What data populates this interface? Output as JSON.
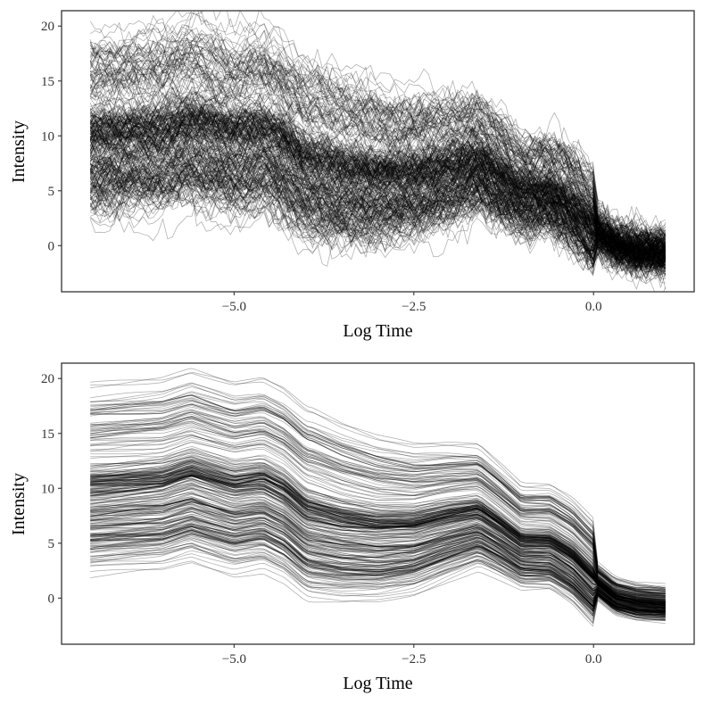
{
  "colors": {
    "line": "#000000",
    "frame": "#333333",
    "background": "#ffffff"
  },
  "chart_data": [
    {
      "type": "line",
      "title": "",
      "xlabel": "Log Time",
      "ylabel": "Intensity",
      "xlim": [
        -7.4,
        1.4
      ],
      "ylim": [
        -4.2,
        21.4
      ],
      "xticks": [
        -5.0,
        -2.5,
        0.0
      ],
      "xtick_labels": [
        "−5.0",
        "−2.5",
        "0.0"
      ],
      "yticks": [
        0,
        5,
        10,
        15,
        20
      ],
      "ytick_labels": [
        "0",
        "5",
        "10",
        "15",
        "20"
      ],
      "grid": false,
      "n_curves": 300,
      "x_range": [
        -7.0,
        1.0
      ],
      "smoothed": false,
      "mean_profile": {
        "x": [
          -7.0,
          -6.0,
          -5.6,
          -5.0,
          -4.6,
          -4.3,
          -4.0,
          -3.5,
          -3.0,
          -2.5,
          -2.0,
          -1.6,
          -1.3,
          -1.0,
          -0.6,
          -0.3,
          0.0,
          0.3,
          0.6,
          1.0
        ],
        "y": [
          9.5,
          10.0,
          10.8,
          9.6,
          10.0,
          9.0,
          7.3,
          6.5,
          6.1,
          6.2,
          7.0,
          7.5,
          6.2,
          4.8,
          4.8,
          3.6,
          1.6,
          0.0,
          -0.5,
          -0.7
        ]
      }
    },
    {
      "type": "line",
      "title": "",
      "xlabel": "Log Time",
      "ylabel": "Intensity",
      "xlim": [
        -7.4,
        1.4
      ],
      "ylim": [
        -4.2,
        21.4
      ],
      "xticks": [
        -5.0,
        -2.5,
        0.0
      ],
      "xtick_labels": [
        "−5.0",
        "−2.5",
        "0.0"
      ],
      "yticks": [
        0,
        5,
        10,
        15,
        20
      ],
      "ytick_labels": [
        "0",
        "5",
        "10",
        "15",
        "20"
      ],
      "grid": false,
      "n_curves": 300,
      "x_range": [
        -7.0,
        1.0
      ],
      "smoothed": true,
      "mean_profile": {
        "x": [
          -7.0,
          -6.0,
          -5.6,
          -5.0,
          -4.6,
          -4.3,
          -4.0,
          -3.5,
          -3.0,
          -2.5,
          -2.0,
          -1.6,
          -1.3,
          -1.0,
          -0.6,
          -0.3,
          0.0,
          0.3,
          0.6,
          1.0
        ],
        "y": [
          9.5,
          10.0,
          10.8,
          9.6,
          10.0,
          9.0,
          7.3,
          6.5,
          6.1,
          6.2,
          7.0,
          7.5,
          6.2,
          4.8,
          4.8,
          3.6,
          1.6,
          0.0,
          -0.5,
          -0.7
        ]
      }
    }
  ]
}
